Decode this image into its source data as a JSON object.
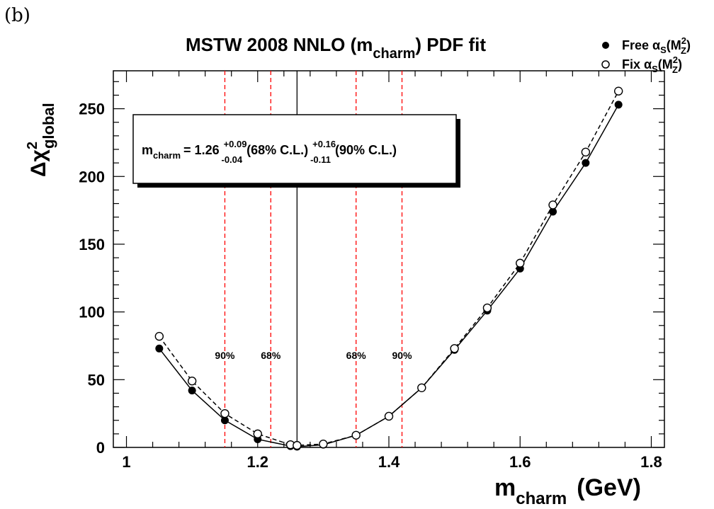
{
  "panel_label": "(b)",
  "chart_data": {
    "type": "line",
    "title": "MSTW 2008 NNLO (m_charm) PDF fit",
    "title_parts": {
      "main": "MSTW 2008 NNLO (m",
      "sub": "charm",
      "tail": ") PDF fit"
    },
    "xlabel": "m_charm (GeV)",
    "xlabel_parts": {
      "main": "m",
      "sub": "charm",
      "unit": "(GeV)"
    },
    "ylabel": "Δχ²_global",
    "ylabel_parts": {
      "delta": "Δ",
      "chi": "χ",
      "sup": "2",
      "sub": "global"
    },
    "xlim": [
      0.98,
      1.82
    ],
    "ylim": [
      0,
      278
    ],
    "xticks": [
      {
        "value": 1,
        "label": "1"
      },
      {
        "value": 1.2,
        "label": "1.2"
      },
      {
        "value": 1.4,
        "label": "1.4"
      },
      {
        "value": 1.6,
        "label": "1.6"
      },
      {
        "value": 1.8,
        "label": "1.8"
      }
    ],
    "yticks": [
      {
        "value": 0,
        "label": "0"
      },
      {
        "value": 50,
        "label": "50"
      },
      {
        "value": 100,
        "label": "100"
      },
      {
        "value": 150,
        "label": "150"
      },
      {
        "value": 200,
        "label": "200"
      },
      {
        "value": 250,
        "label": "250"
      }
    ],
    "grid": false,
    "legend_position": "top-right",
    "series": [
      {
        "name": "Free α_S(M_Z²)",
        "legend_parts": {
          "main": "Free α",
          "sub1": "S",
          "paren": "(M",
          "sup": "2",
          "sub2": "Z",
          "close": ")"
        },
        "marker": "filled-circle",
        "line": "solid",
        "color": "#000000",
        "x": [
          1.05,
          1.1,
          1.15,
          1.2,
          1.25,
          1.26,
          1.3,
          1.35,
          1.4,
          1.45,
          1.5,
          1.55,
          1.6,
          1.65,
          1.7,
          1.75
        ],
        "y": [
          73,
          42,
          20,
          6,
          1,
          0.5,
          2,
          9,
          23,
          44,
          72,
          101,
          132,
          174,
          210,
          253
        ]
      },
      {
        "name": "Fix α_S(M_Z²)",
        "legend_parts": {
          "main": "Fix α",
          "sub1": "S",
          "paren": "(M",
          "sup": "2",
          "sub2": "Z",
          "close": ")"
        },
        "marker": "open-circle",
        "line": "dashed",
        "color": "#000000",
        "x": [
          1.05,
          1.1,
          1.15,
          1.2,
          1.25,
          1.26,
          1.3,
          1.35,
          1.4,
          1.45,
          1.5,
          1.55,
          1.6,
          1.65,
          1.7,
          1.75
        ],
        "y": [
          82,
          49,
          25,
          10,
          2,
          1.5,
          2.5,
          9,
          23,
          44,
          73,
          103,
          136,
          179,
          218,
          263
        ]
      }
    ],
    "best_fit": {
      "x": 1.26,
      "color": "#000000"
    },
    "cl_lines": [
      {
        "x": 1.15,
        "label": "90%",
        "color": "#ff0000"
      },
      {
        "x": 1.22,
        "label": "68%",
        "color": "#ff0000"
      },
      {
        "x": 1.35,
        "label": "68%",
        "color": "#ff0000"
      },
      {
        "x": 1.42,
        "label": "90%",
        "color": "#ff0000"
      }
    ],
    "cl_label_y": 68,
    "result_box": {
      "text": "m_charm = 1.26 +0.09 -0.04 (68% C.L.) +0.16 -0.11 (90% C.L.)",
      "m": "m",
      "sub": "charm",
      "value": "= 1.26",
      "plus68": "+0.09",
      "minus68": "-0.04",
      "cl68": "(68% C.L.)",
      "plus90": "+0.16",
      "minus90": "-0.11",
      "cl90": "(90% C.L.)"
    }
  }
}
